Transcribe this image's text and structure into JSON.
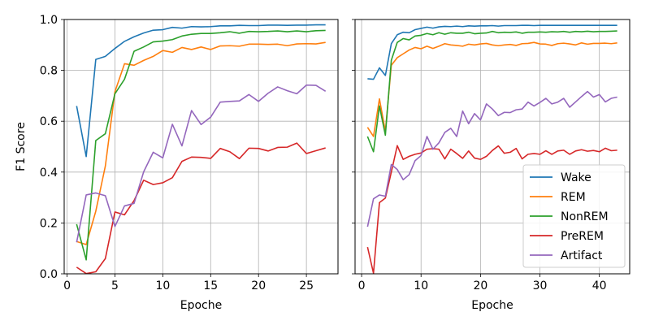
{
  "chart_data": [
    {
      "type": "line",
      "title": "",
      "xlabel": "Epoche",
      "ylabel": "F1 Score",
      "xlim": [
        -0.3,
        28.3
      ],
      "ylim": [
        0.0,
        1.0
      ],
      "xticks": [
        "0",
        "5",
        "10",
        "15",
        "20",
        "25"
      ],
      "yticks": [
        "0.0",
        "0.2",
        "0.4",
        "0.6",
        "0.8",
        "1.0"
      ],
      "grid": true,
      "legend": "none",
      "x": [
        1,
        2,
        3,
        4,
        5,
        6,
        7,
        8,
        9,
        10,
        11,
        12,
        13,
        14,
        15,
        16,
        17,
        18,
        19,
        20,
        21,
        22,
        23,
        24,
        25,
        26,
        27
      ],
      "series": [
        {
          "name": "Wake",
          "color": "#1f77b4",
          "values": [
            0.66,
            0.461,
            0.843,
            0.855,
            0.886,
            0.914,
            0.932,
            0.947,
            0.958,
            0.96,
            0.969,
            0.966,
            0.972,
            0.971,
            0.972,
            0.975,
            0.975,
            0.977,
            0.976,
            0.976,
            0.978,
            0.978,
            0.977,
            0.978,
            0.978,
            0.979,
            0.979
          ]
        },
        {
          "name": "REM",
          "color": "#ff7f0e",
          "values": [
            0.127,
            0.115,
            0.246,
            0.424,
            0.716,
            0.826,
            0.82,
            0.839,
            0.855,
            0.878,
            0.871,
            0.89,
            0.882,
            0.892,
            0.882,
            0.896,
            0.897,
            0.895,
            0.903,
            0.903,
            0.902,
            0.903,
            0.897,
            0.904,
            0.905,
            0.904,
            0.91
          ]
        },
        {
          "name": "NonREM",
          "color": "#2ca02c",
          "values": [
            0.195,
            0.055,
            0.524,
            0.551,
            0.708,
            0.765,
            0.875,
            0.892,
            0.912,
            0.915,
            0.921,
            0.935,
            0.942,
            0.945,
            0.945,
            0.948,
            0.952,
            0.946,
            0.953,
            0.952,
            0.953,
            0.955,
            0.952,
            0.955,
            0.952,
            0.956,
            0.957
          ]
        },
        {
          "name": "PreREM",
          "color": "#d62728",
          "values": [
            0.026,
            0.001,
            0.008,
            0.06,
            0.243,
            0.232,
            0.288,
            0.368,
            0.351,
            0.358,
            0.378,
            0.442,
            0.459,
            0.458,
            0.454,
            0.493,
            0.48,
            0.453,
            0.494,
            0.493,
            0.483,
            0.497,
            0.498,
            0.514,
            0.473,
            0.484,
            0.495
          ]
        },
        {
          "name": "Artifact",
          "color": "#9467bd",
          "values": [
            0.124,
            0.31,
            0.318,
            0.307,
            0.186,
            0.267,
            0.277,
            0.401,
            0.478,
            0.456,
            0.588,
            0.503,
            0.642,
            0.587,
            0.616,
            0.675,
            0.678,
            0.68,
            0.705,
            0.678,
            0.71,
            0.735,
            0.72,
            0.708,
            0.742,
            0.741,
            0.718
          ]
        }
      ]
    },
    {
      "type": "line",
      "title": "",
      "xlabel": "Epoche",
      "ylabel": "",
      "xlim": [
        -1.1,
        45.1
      ],
      "ylim": [
        0.0,
        1.0
      ],
      "xticks": [
        "0",
        "10",
        "20",
        "30",
        "40"
      ],
      "yticks": [],
      "grid": true,
      "legend": "lower-right",
      "x": [
        1,
        2,
        3,
        4,
        5,
        6,
        7,
        8,
        9,
        10,
        11,
        12,
        13,
        14,
        15,
        16,
        17,
        18,
        19,
        20,
        21,
        22,
        23,
        24,
        25,
        26,
        27,
        28,
        29,
        30,
        31,
        32,
        33,
        34,
        35,
        36,
        37,
        38,
        39,
        40,
        41,
        42,
        43
      ],
      "series": [
        {
          "name": "Wake",
          "color": "#1f77b4",
          "values": [
            0.767,
            0.765,
            0.81,
            0.78,
            0.905,
            0.94,
            0.95,
            0.948,
            0.96,
            0.965,
            0.97,
            0.966,
            0.971,
            0.973,
            0.972,
            0.974,
            0.972,
            0.975,
            0.974,
            0.975,
            0.975,
            0.976,
            0.974,
            0.976,
            0.976,
            0.976,
            0.977,
            0.977,
            0.976,
            0.977,
            0.977,
            0.977,
            0.977,
            0.977,
            0.977,
            0.977,
            0.977,
            0.977,
            0.977,
            0.977,
            0.977,
            0.977,
            0.977
          ]
        },
        {
          "name": "REM",
          "color": "#ff7f0e",
          "values": [
            0.576,
            0.54,
            0.688,
            0.56,
            0.82,
            0.85,
            0.865,
            0.88,
            0.89,
            0.885,
            0.895,
            0.886,
            0.895,
            0.905,
            0.9,
            0.898,
            0.895,
            0.903,
            0.9,
            0.904,
            0.906,
            0.9,
            0.897,
            0.9,
            0.902,
            0.898,
            0.905,
            0.906,
            0.91,
            0.904,
            0.903,
            0.898,
            0.905,
            0.907,
            0.904,
            0.9,
            0.908,
            0.903,
            0.906,
            0.906,
            0.907,
            0.905,
            0.908
          ]
        },
        {
          "name": "NonREM",
          "color": "#2ca02c",
          "values": [
            0.54,
            0.48,
            0.66,
            0.545,
            0.84,
            0.91,
            0.925,
            0.92,
            0.935,
            0.938,
            0.945,
            0.94,
            0.948,
            0.942,
            0.948,
            0.946,
            0.946,
            0.95,
            0.944,
            0.946,
            0.947,
            0.953,
            0.948,
            0.95,
            0.949,
            0.951,
            0.946,
            0.95,
            0.95,
            0.951,
            0.95,
            0.952,
            0.951,
            0.953,
            0.95,
            0.953,
            0.952,
            0.954,
            0.952,
            0.953,
            0.953,
            0.954,
            0.955
          ]
        },
        {
          "name": "PreREM",
          "color": "#d62728",
          "values": [
            0.105,
            0.002,
            0.28,
            0.298,
            0.4,
            0.504,
            0.45,
            0.462,
            0.47,
            0.475,
            0.49,
            0.492,
            0.49,
            0.452,
            0.49,
            0.473,
            0.454,
            0.483,
            0.455,
            0.45,
            0.462,
            0.485,
            0.503,
            0.474,
            0.478,
            0.493,
            0.452,
            0.47,
            0.473,
            0.47,
            0.484,
            0.47,
            0.483,
            0.486,
            0.47,
            0.483,
            0.488,
            0.482,
            0.485,
            0.48,
            0.494,
            0.484,
            0.486
          ]
        },
        {
          "name": "Artifact",
          "color": "#9467bd",
          "values": [
            0.185,
            0.295,
            0.31,
            0.305,
            0.43,
            0.41,
            0.37,
            0.39,
            0.445,
            0.465,
            0.54,
            0.49,
            0.515,
            0.556,
            0.572,
            0.54,
            0.64,
            0.59,
            0.63,
            0.605,
            0.668,
            0.648,
            0.622,
            0.635,
            0.634,
            0.645,
            0.648,
            0.675,
            0.66,
            0.674,
            0.69,
            0.668,
            0.675,
            0.69,
            0.655,
            0.676,
            0.697,
            0.717,
            0.695,
            0.705,
            0.676,
            0.69,
            0.695
          ]
        }
      ]
    }
  ]
}
